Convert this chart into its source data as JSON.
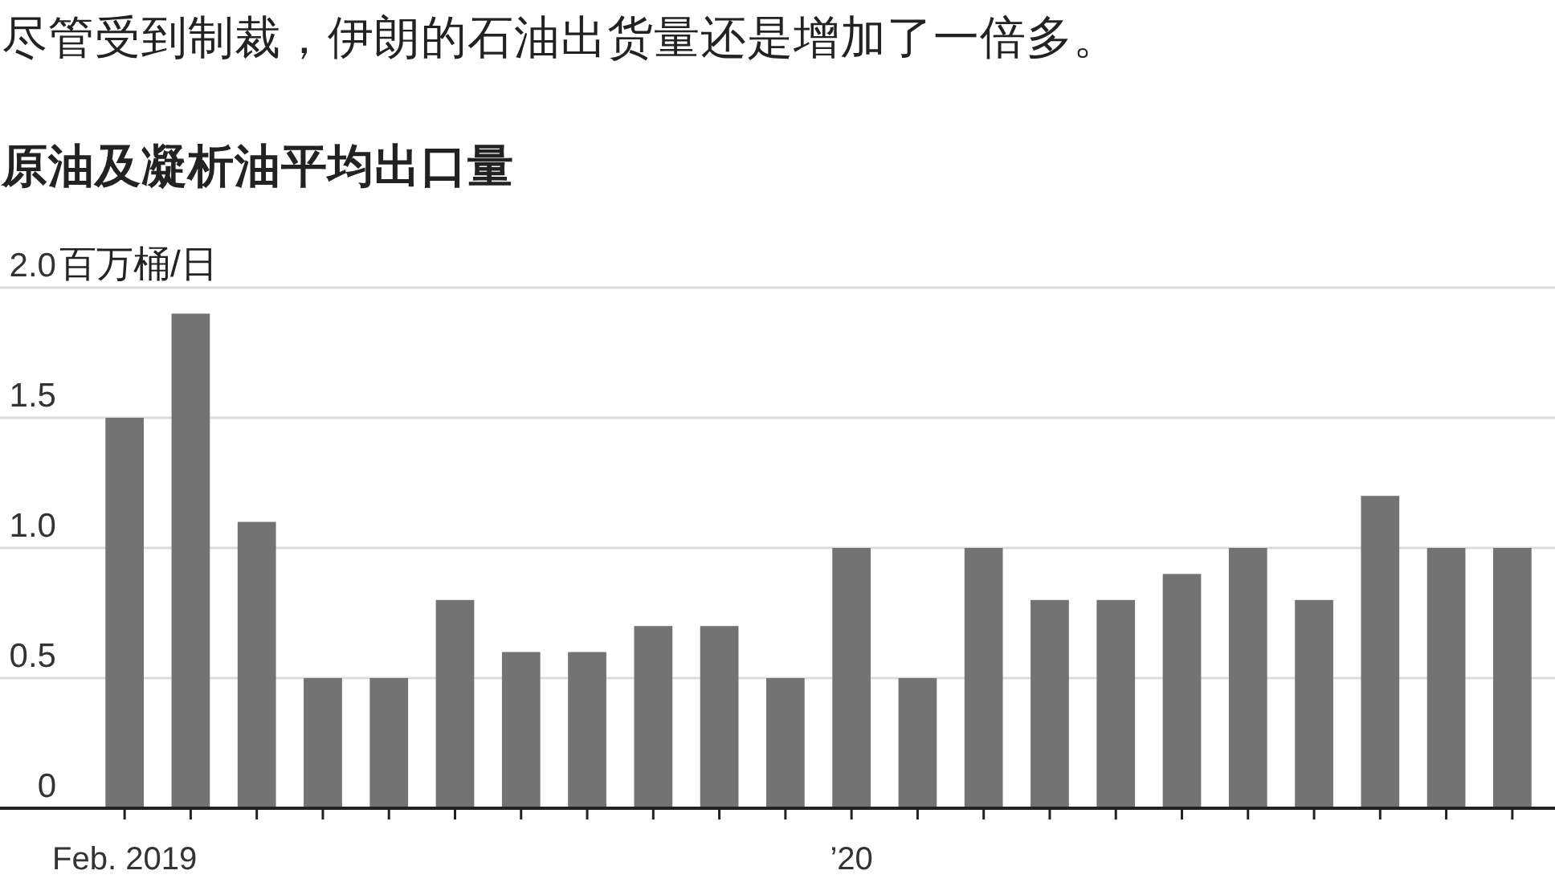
{
  "chart_data": {
    "type": "bar",
    "title": "尽管受到制裁，伊朗的石油出货量还是增加了一倍多。",
    "subtitle": "原油及凝析油平均出口量",
    "ylabel": "百万桶/日",
    "categories": [
      "Feb. 2019",
      null,
      null,
      null,
      null,
      null,
      null,
      null,
      null,
      null,
      null,
      "’20",
      null,
      null,
      null,
      null,
      null,
      null,
      null,
      null,
      null,
      null
    ],
    "values": [
      1.5,
      1.9,
      1.1,
      0.5,
      0.5,
      0.8,
      0.6,
      0.6,
      0.7,
      0.7,
      0.5,
      1.0,
      0.5,
      1.0,
      0.8,
      0.8,
      0.9,
      1.0,
      0.8,
      1.2,
      1.0,
      1.0
    ],
    "color": "#737373",
    "ylim": [
      0,
      2
    ],
    "yticks": [
      0,
      0.5,
      {
        "value": 1,
        "label": "1.0"
      },
      1.5,
      {
        "value": 2,
        "label": "2.0"
      }
    ],
    "grid": "y"
  }
}
